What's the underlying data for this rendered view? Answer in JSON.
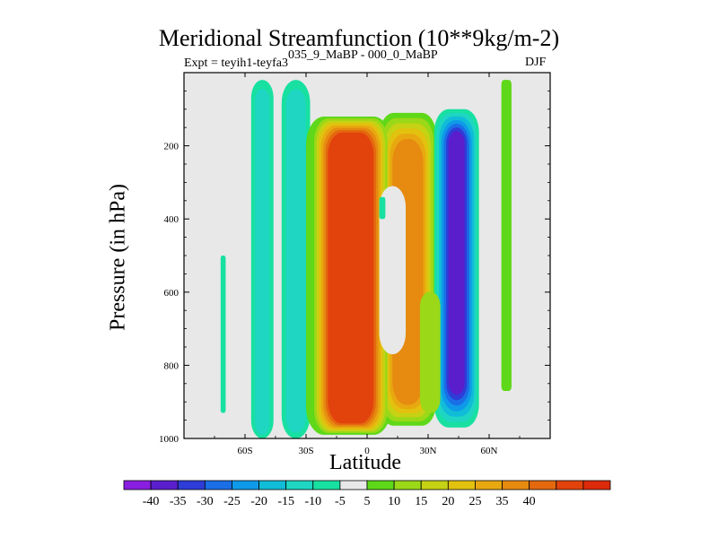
{
  "title": "Meridional Streamfunction (10**9kg/m-2)",
  "experiment_label": "Expt = teyih1-teyfa3",
  "experiment_sup": "035_9_MaBP - 000_0_MaBP",
  "season": "DJF",
  "colors": {
    "background_field": "#e8e8e8",
    "levels": [
      "#8a1ee0",
      "#5a1ecc",
      "#2e3cd8",
      "#1a6ee6",
      "#0e9ae8",
      "#10bcd8",
      "#1ed6c2",
      "#18e0a0",
      "#e8e8e8",
      "#5ed818",
      "#9ad818",
      "#c6d214",
      "#e2c20e",
      "#e8a810",
      "#e68a10",
      "#e4680e",
      "#e2420c",
      "#dc2a0a"
    ]
  },
  "chart_data": {
    "type": "contour",
    "title": "Meridional Streamfunction (10**9kg/m-2)",
    "xlabel": "Latitude",
    "ylabel": "Pressure (in hPa)",
    "xlim": [
      -90,
      90
    ],
    "ylim": [
      1000,
      0
    ],
    "xticks": [
      {
        "value": -60,
        "label": "60S"
      },
      {
        "value": -30,
        "label": "30S"
      },
      {
        "value": 0,
        "label": "0"
      },
      {
        "value": 30,
        "label": "30N"
      },
      {
        "value": 60,
        "label": "60N"
      }
    ],
    "yticks": [
      {
        "value": 200,
        "label": "200"
      },
      {
        "value": 400,
        "label": "400"
      },
      {
        "value": 600,
        "label": "600"
      },
      {
        "value": 800,
        "label": "800"
      },
      {
        "value": 1000,
        "label": "1000"
      }
    ],
    "colorbar_labels": [
      "-40",
      "-35",
      "-30",
      "-25",
      "-20",
      "-15",
      "-10",
      "-5",
      "5",
      "10",
      "15",
      "20",
      "25",
      "35",
      "40"
    ],
    "colorbar_label_slots": [
      1,
      2,
      3,
      4,
      5,
      6,
      7,
      8,
      9,
      10,
      11,
      12,
      13,
      14,
      15
    ],
    "features": [
      {
        "name": "cell-50S-columns",
        "lat": [
          -55,
          -48
        ],
        "p": [
          1000,
          20
        ],
        "value": -8
      },
      {
        "name": "cell-35S-plume",
        "lat": [
          -38,
          -30
        ],
        "p": [
          1000,
          20
        ],
        "value": -10
      },
      {
        "name": "cell-83S-strip",
        "lat": [
          -71,
          -69
        ],
        "p": [
          930,
          500
        ],
        "value": -8
      },
      {
        "name": "main-cell-equator",
        "lat": [
          -22,
          8
        ],
        "p": [
          990,
          120
        ],
        "value": 44
      },
      {
        "name": "cell-20N-shoulder",
        "lat": [
          8,
          33
        ],
        "p": [
          960,
          110
        ],
        "value": 22
      },
      {
        "name": "cell-40N-negative",
        "lat": [
          35,
          52
        ],
        "p": [
          970,
          120
        ],
        "value": -34
      },
      {
        "name": "cell-70N-strip",
        "lat": [
          66,
          71
        ],
        "p": [
          870,
          20
        ],
        "value": 8
      },
      {
        "name": "cell-10N-hole",
        "lat": [
          8,
          18
        ],
        "p": [
          800,
          300
        ],
        "value": 0
      }
    ]
  }
}
